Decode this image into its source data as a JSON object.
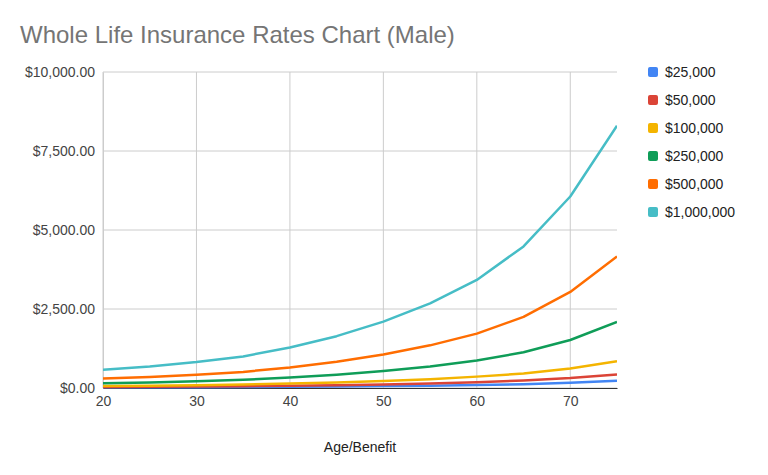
{
  "chart_data": {
    "type": "line",
    "title": "Whole Life Insurance Rates Chart (Male)",
    "x_label": "Age/Benefit",
    "x": [
      20,
      25,
      30,
      35,
      40,
      45,
      50,
      55,
      60,
      65,
      70,
      75
    ],
    "series": [
      {
        "name": "$25,000",
        "color": "#4285f4",
        "values": [
          20,
          23,
          27,
          32,
          39,
          48,
          60,
          75,
          95,
          122,
          163,
          230
        ]
      },
      {
        "name": "$50,000",
        "color": "#db4437",
        "values": [
          35,
          40,
          47,
          57,
          72,
          90,
          113,
          143,
          183,
          235,
          315,
          430
        ]
      },
      {
        "name": "$100,000",
        "color": "#f4b400",
        "values": [
          65,
          75,
          90,
          110,
          140,
          175,
          220,
          280,
          360,
          460,
          620,
          850
        ]
      },
      {
        "name": "$250,000",
        "color": "#0f9d58",
        "values": [
          150,
          175,
          210,
          260,
          330,
          420,
          540,
          680,
          870,
          1130,
          1520,
          2090
        ]
      },
      {
        "name": "$500,000",
        "color": "#ff6d01",
        "values": [
          300,
          350,
          420,
          510,
          650,
          830,
          1060,
          1350,
          1720,
          2250,
          3040,
          4160
        ]
      },
      {
        "name": "$1,000,000",
        "color": "#46bdc6",
        "values": [
          580,
          680,
          820,
          1000,
          1280,
          1640,
          2100,
          2680,
          3420,
          4480,
          6060,
          8300
        ]
      }
    ],
    "xlim": [
      20,
      75
    ],
    "ylim": [
      0,
      10000
    ],
    "xticks": [
      20,
      30,
      40,
      50,
      60,
      70
    ],
    "yticks": [
      {
        "value": 0,
        "label": "$0.00"
      },
      {
        "value": 2500,
        "label": "$2,500.00"
      },
      {
        "value": 5000,
        "label": "$5,000.00"
      },
      {
        "value": 7500,
        "label": "$7,500.00"
      },
      {
        "value": 10000,
        "label": "$10,000.00"
      }
    ],
    "grid": true,
    "legend": "right"
  }
}
